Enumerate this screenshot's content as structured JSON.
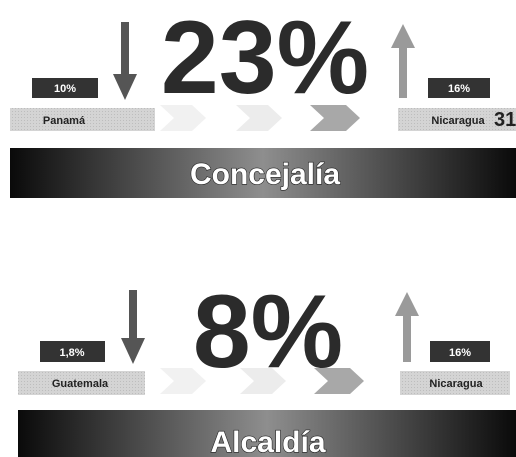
{
  "panels": [
    {
      "percent": "23%",
      "left": {
        "value": "10%",
        "label": "Panamá"
      },
      "right": {
        "value": "16%",
        "label": "Nicaragua"
      },
      "side_number": "31",
      "banner": "Concejalía"
    },
    {
      "percent": "8%",
      "left": {
        "value": "1,8%",
        "label": "Guatemala"
      },
      "right": {
        "value": "16%",
        "label": "Nicaragua"
      },
      "banner": "Alcaldía"
    }
  ]
}
